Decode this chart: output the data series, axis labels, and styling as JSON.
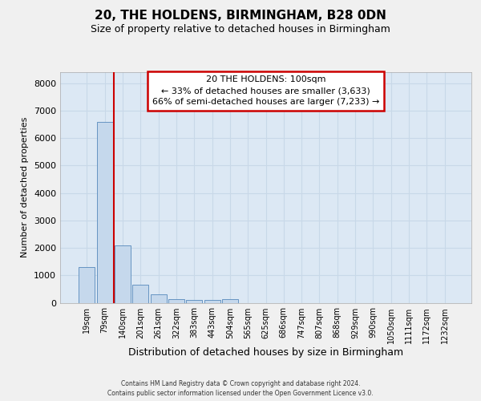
{
  "title1": "20, THE HOLDENS, BIRMINGHAM, B28 0DN",
  "title2": "Size of property relative to detached houses in Birmingham",
  "xlabel": "Distribution of detached houses by size in Birmingham",
  "ylabel": "Number of detached properties",
  "categories": [
    "19sqm",
    "79sqm",
    "140sqm",
    "201sqm",
    "261sqm",
    "322sqm",
    "383sqm",
    "443sqm",
    "504sqm",
    "565sqm",
    "625sqm",
    "686sqm",
    "747sqm",
    "807sqm",
    "868sqm",
    "929sqm",
    "990sqm",
    "1050sqm",
    "1111sqm",
    "1172sqm",
    "1232sqm"
  ],
  "values": [
    1300,
    6600,
    2080,
    650,
    300,
    140,
    90,
    90,
    130,
    0,
    0,
    0,
    0,
    0,
    0,
    0,
    0,
    0,
    0,
    0,
    0
  ],
  "bar_color": "#c5d8ec",
  "bar_edge_color": "#5588bb",
  "annotation_text": "20 THE HOLDENS: 100sqm\n← 33% of detached houses are smaller (3,633)\n66% of semi-detached houses are larger (7,233) →",
  "annotation_box_facecolor": "#ffffff",
  "annotation_box_edgecolor": "#cc0000",
  "property_line_color": "#cc0000",
  "property_line_x": 1.5,
  "ylim": [
    0,
    8400
  ],
  "yticks": [
    0,
    1000,
    2000,
    3000,
    4000,
    5000,
    6000,
    7000,
    8000
  ],
  "grid_color": "#c8d8e8",
  "plot_bg_color": "#dce8f4",
  "fig_bg_color": "#f0f0f0",
  "title1_fontsize": 11,
  "title2_fontsize": 9,
  "ylabel_fontsize": 8,
  "xlabel_fontsize": 9,
  "tick_fontsize": 7,
  "footer1": "Contains HM Land Registry data © Crown copyright and database right 2024.",
  "footer2": "Contains public sector information licensed under the Open Government Licence v3.0."
}
